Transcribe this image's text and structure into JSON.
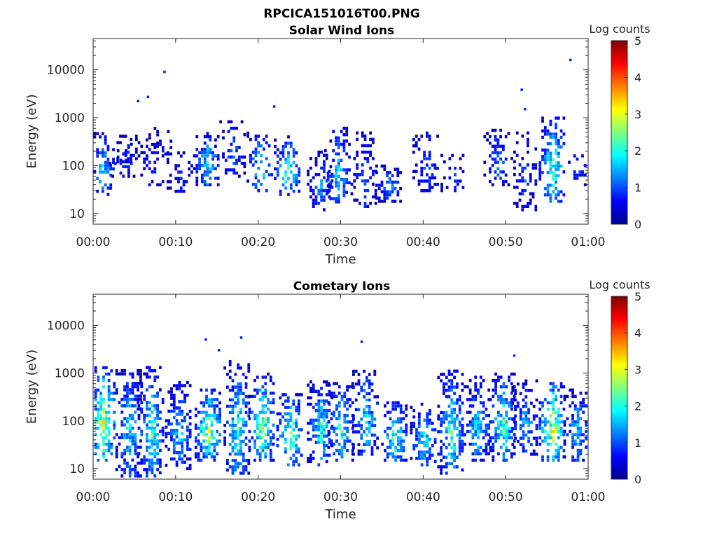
{
  "figure_title": "RPCICA151016T00.PNG",
  "colorbar": {
    "label": "Log counts",
    "ticks": [
      "0",
      "1",
      "2",
      "3",
      "4",
      "5"
    ],
    "range": [
      0,
      5
    ],
    "colormap": "jet"
  },
  "chart_data": [
    {
      "type": "heatmap",
      "title": "Solar Wind Ions",
      "xlabel": "Time",
      "ylabel": "Energy (eV)",
      "x_ticks": [
        "00:00",
        "00:10",
        "00:20",
        "00:30",
        "00:40",
        "00:50",
        "01:00"
      ],
      "xlim_minutes": [
        0,
        60
      ],
      "y_scale": "log",
      "y_ticks": [
        "10",
        "100",
        "1000",
        "10000"
      ],
      "ylim": [
        6,
        45000
      ],
      "z_label": "Log counts",
      "z_range": [
        0,
        5
      ],
      "bursts": [
        {
          "t": 1.0,
          "emin": 25,
          "emax": 500,
          "peak": 2.0,
          "density": 0.55
        },
        {
          "t": 3.5,
          "emin": 60,
          "emax": 300,
          "peak": 1.3,
          "density": 0.35
        },
        {
          "t": 4.1,
          "emin": 120,
          "emax": 450,
          "peak": 1.0,
          "density": 0.4
        },
        {
          "t": 7.0,
          "emin": 40,
          "emax": 400,
          "peak": 1.2,
          "density": 0.35
        },
        {
          "t": 8.3,
          "emin": 150,
          "emax": 600,
          "peak": 0.9,
          "density": 0.3
        },
        {
          "t": 10.5,
          "emin": 25,
          "emax": 200,
          "peak": 1.0,
          "density": 0.4
        },
        {
          "t": 13.7,
          "emin": 40,
          "emax": 500,
          "peak": 2.3,
          "density": 0.6
        },
        {
          "t": 16.9,
          "emin": 60,
          "emax": 900,
          "peak": 1.4,
          "density": 0.4
        },
        {
          "t": 20.2,
          "emin": 30,
          "emax": 500,
          "peak": 2.4,
          "density": 0.55
        },
        {
          "t": 23.5,
          "emin": 25,
          "emax": 400,
          "peak": 2.6,
          "density": 0.55
        },
        {
          "t": 27.5,
          "emin": 12,
          "emax": 200,
          "peak": 1.6,
          "density": 0.5
        },
        {
          "t": 29.6,
          "emin": 15,
          "emax": 700,
          "peak": 2.0,
          "density": 0.5
        },
        {
          "t": 32.8,
          "emin": 12,
          "emax": 500,
          "peak": 1.4,
          "density": 0.55
        },
        {
          "t": 35.8,
          "emin": 18,
          "emax": 100,
          "peak": 1.7,
          "density": 0.65
        },
        {
          "t": 40.3,
          "emin": 30,
          "emax": 500,
          "peak": 1.3,
          "density": 0.45
        },
        {
          "t": 43.7,
          "emin": 30,
          "emax": 200,
          "peak": 1.4,
          "density": 0.45
        },
        {
          "t": 48.9,
          "emin": 40,
          "emax": 600,
          "peak": 1.6,
          "density": 0.5
        },
        {
          "t": 52.2,
          "emin": 12,
          "emax": 500,
          "peak": 1.2,
          "density": 0.45
        },
        {
          "t": 55.6,
          "emin": 18,
          "emax": 1000,
          "peak": 2.8,
          "density": 0.6
        },
        {
          "t": 58.5,
          "emin": 40,
          "emax": 250,
          "peak": 1.2,
          "density": 0.35
        }
      ],
      "isolated_points": [
        {
          "t": 5.3,
          "e": 2200,
          "v": 0.8
        },
        {
          "t": 6.5,
          "e": 2700,
          "v": 0.8
        },
        {
          "t": 8.5,
          "e": 9000,
          "v": 0.8
        },
        {
          "t": 21.8,
          "e": 1700,
          "v": 0.8
        },
        {
          "t": 51.8,
          "e": 3800,
          "v": 0.8
        },
        {
          "t": 52.2,
          "e": 1500,
          "v": 0.8
        },
        {
          "t": 57.7,
          "e": 16000,
          "v": 0.8
        }
      ]
    },
    {
      "type": "heatmap",
      "title": "Cometary Ions",
      "xlabel": "Time",
      "ylabel": "Energy (eV)",
      "x_ticks": [
        "00:00",
        "00:10",
        "00:20",
        "00:30",
        "00:40",
        "00:50",
        "01:00"
      ],
      "xlim_minutes": [
        0,
        60
      ],
      "y_scale": "log",
      "y_ticks": [
        "10",
        "100",
        "1000",
        "10000"
      ],
      "ylim": [
        6,
        45000
      ],
      "z_label": "Log counts",
      "z_range": [
        0,
        5
      ],
      "bursts": [
        {
          "t": 1.1,
          "emin": 15,
          "emax": 1500,
          "peak": 3.5,
          "density": 0.75
        },
        {
          "t": 4.3,
          "emin": 7,
          "emax": 1500,
          "peak": 2.3,
          "density": 0.7
        },
        {
          "t": 7.0,
          "emin": 7,
          "emax": 1500,
          "peak": 2.6,
          "density": 0.7
        },
        {
          "t": 10.3,
          "emin": 10,
          "emax": 700,
          "peak": 2.1,
          "density": 0.65
        },
        {
          "t": 13.9,
          "emin": 15,
          "emax": 500,
          "peak": 3.4,
          "density": 0.75
        },
        {
          "t": 17.4,
          "emin": 8,
          "emax": 1800,
          "peak": 2.6,
          "density": 0.75
        },
        {
          "t": 20.4,
          "emin": 15,
          "emax": 1000,
          "peak": 3.3,
          "density": 0.75
        },
        {
          "t": 23.8,
          "emin": 12,
          "emax": 400,
          "peak": 3.1,
          "density": 0.7
        },
        {
          "t": 27.5,
          "emin": 12,
          "emax": 700,
          "peak": 2.5,
          "density": 0.7
        },
        {
          "t": 30.0,
          "emin": 15,
          "emax": 700,
          "peak": 2.4,
          "density": 0.65
        },
        {
          "t": 33.0,
          "emin": 20,
          "emax": 1200,
          "peak": 2.2,
          "density": 0.65
        },
        {
          "t": 36.5,
          "emin": 15,
          "emax": 250,
          "peak": 2.7,
          "density": 0.7
        },
        {
          "t": 40.0,
          "emin": 12,
          "emax": 250,
          "peak": 2.3,
          "density": 0.65
        },
        {
          "t": 43.3,
          "emin": 8,
          "emax": 1200,
          "peak": 2.6,
          "density": 0.7
        },
        {
          "t": 46.5,
          "emin": 15,
          "emax": 900,
          "peak": 2.2,
          "density": 0.7
        },
        {
          "t": 49.6,
          "emin": 15,
          "emax": 1000,
          "peak": 2.8,
          "density": 0.7
        },
        {
          "t": 52.3,
          "emin": 20,
          "emax": 700,
          "peak": 2.0,
          "density": 0.65
        },
        {
          "t": 55.6,
          "emin": 15,
          "emax": 700,
          "peak": 3.7,
          "density": 0.75
        },
        {
          "t": 58.6,
          "emin": 15,
          "emax": 500,
          "peak": 2.0,
          "density": 0.65
        }
      ],
      "isolated_points": [
        {
          "t": 13.5,
          "e": 5000,
          "v": 0.8
        },
        {
          "t": 15.1,
          "e": 3000,
          "v": 0.8
        },
        {
          "t": 17.8,
          "e": 5500,
          "v": 0.8
        },
        {
          "t": 32.4,
          "e": 4500,
          "v": 0.8
        },
        {
          "t": 50.9,
          "e": 2300,
          "v": 0.8
        }
      ]
    }
  ]
}
